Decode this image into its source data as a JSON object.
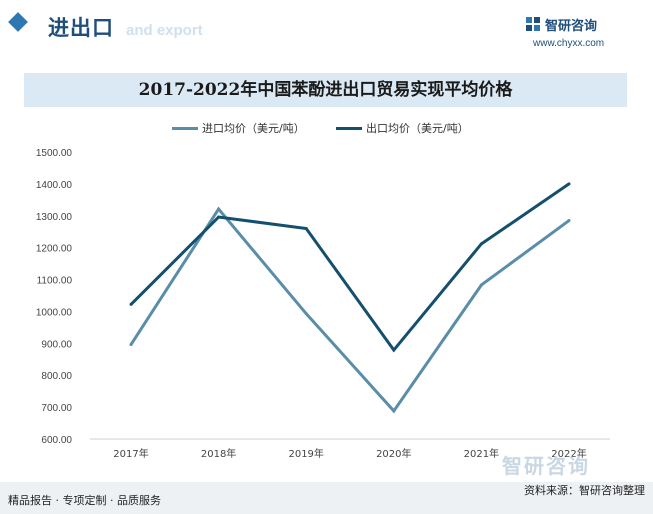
{
  "header": {
    "title": "进出口",
    "subtitle": "and export",
    "brand_name": "智研咨询",
    "brand_url": "www.chyxx.com"
  },
  "chart_data": {
    "type": "line",
    "title": "2017-2022年中国苯酚进出口贸易实现平均价格",
    "categories": [
      "2017年",
      "2018年",
      "2019年",
      "2020年",
      "2021年",
      "2022年"
    ],
    "series": [
      {
        "name": "进口均价（美元/吨）",
        "color": "#5a8ea8",
        "values": [
          896,
          1321,
          993,
          688,
          1083,
          1285
        ]
      },
      {
        "name": "出口均价（美元/吨）",
        "color": "#14506e",
        "values": [
          1022,
          1296,
          1260,
          879,
          1212,
          1400
        ]
      }
    ],
    "y_ticks": [
      "1500.00",
      "1400.00",
      "1300.00",
      "1200.00",
      "1100.00",
      "1000.00",
      "900.00",
      "800.00",
      "700.00",
      "600.00"
    ],
    "ylim": [
      600,
      1500
    ],
    "grid": false,
    "legend_position": "top"
  },
  "footer": {
    "left_text": "精品报告 · 专项定制 · 品质服务",
    "right_text": "资料来源：智研咨询整理",
    "watermark_brand": "智研咨询"
  }
}
